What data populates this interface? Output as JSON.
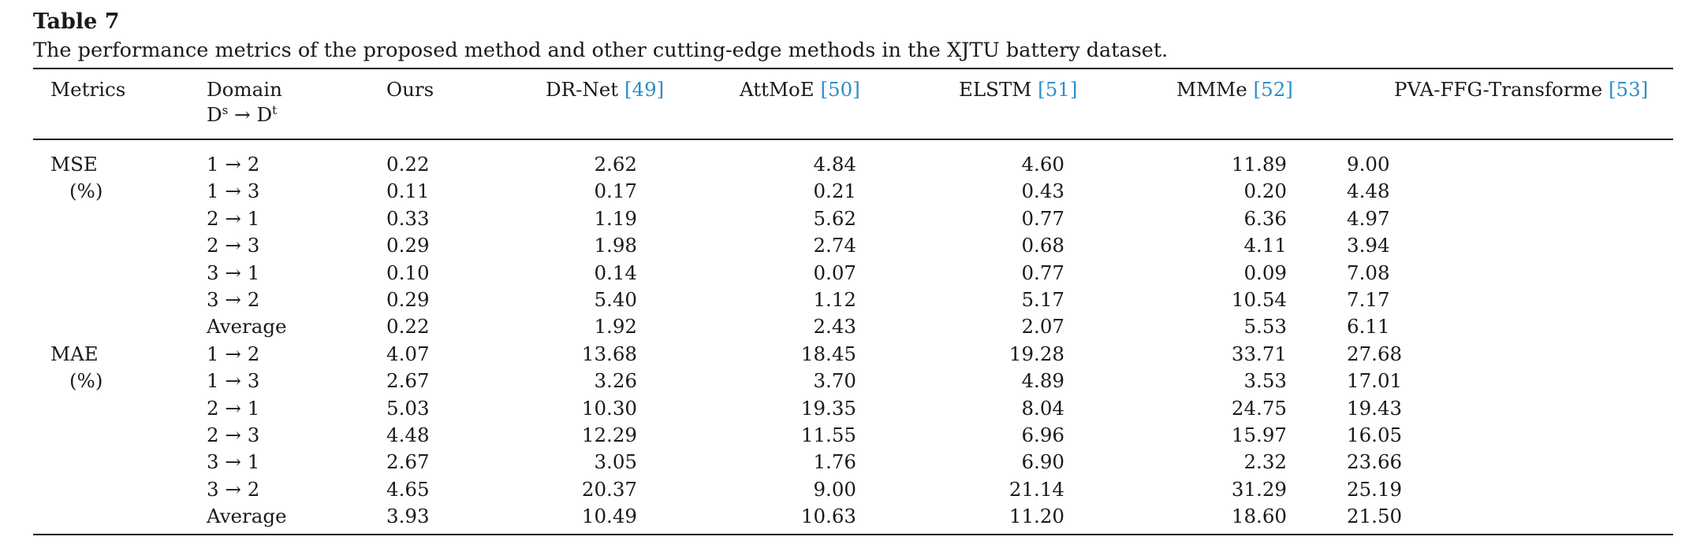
{
  "table": {
    "label": "Table 7",
    "caption": "The performance metrics of the proposed method and other cutting-edge methods in the XJTU battery dataset.",
    "headers": {
      "metrics": "Metrics",
      "domain": "Domain",
      "domain_sub_prefix": "D",
      "domain_sub_s": "s",
      "domain_sub_arrow": " → D",
      "domain_sub_t": "t",
      "ours": "Ours",
      "drnet": "DR-Net ",
      "drnet_ref": "[49]",
      "attmoe": "AttMoE ",
      "attmoe_ref": "[50]",
      "elstm": "ELSTM ",
      "elstm_ref": "[51]",
      "mmme": "MMMe ",
      "mmme_ref": "[52]",
      "pva": "PVA-FFG-Transforme ",
      "pva_ref": "[53]"
    },
    "groups": [
      {
        "metric": "MSE",
        "unit": "(%)",
        "rows": [
          {
            "domain": "1 → 2",
            "ours": "0.22",
            "drnet": "2.62",
            "attmoe": "4.84",
            "elstm": "4.60",
            "mmme": "11.89",
            "pva": "9.00"
          },
          {
            "domain": "1 → 3",
            "ours": "0.11",
            "drnet": "0.17",
            "attmoe": "0.21",
            "elstm": "0.43",
            "mmme": "0.20",
            "pva": "4.48"
          },
          {
            "domain": "2 → 1",
            "ours": "0.33",
            "drnet": "1.19",
            "attmoe": "5.62",
            "elstm": "0.77",
            "mmme": "6.36",
            "pva": "4.97"
          },
          {
            "domain": "2 → 3",
            "ours": "0.29",
            "drnet": "1.98",
            "attmoe": "2.74",
            "elstm": "0.68",
            "mmme": "4.11",
            "pva": "3.94"
          },
          {
            "domain": "3 → 1",
            "ours": "0.10",
            "drnet": "0.14",
            "attmoe": "0.07",
            "elstm": "0.77",
            "mmme": "0.09",
            "pva": "7.08"
          },
          {
            "domain": "3 → 2",
            "ours": "0.29",
            "drnet": "5.40",
            "attmoe": "1.12",
            "elstm": "5.17",
            "mmme": "10.54",
            "pva": "7.17"
          },
          {
            "domain": "Average",
            "ours": "0.22",
            "drnet": "1.92",
            "attmoe": "2.43",
            "elstm": "2.07",
            "mmme": "5.53",
            "pva": "6.11"
          }
        ]
      },
      {
        "metric": "MAE",
        "unit": "(%)",
        "rows": [
          {
            "domain": "1 → 2",
            "ours": "4.07",
            "drnet": "13.68",
            "attmoe": "18.45",
            "elstm": "19.28",
            "mmme": "33.71",
            "pva": "27.68"
          },
          {
            "domain": "1 → 3",
            "ours": "2.67",
            "drnet": "3.26",
            "attmoe": "3.70",
            "elstm": "4.89",
            "mmme": "3.53",
            "pva": "17.01"
          },
          {
            "domain": "2 → 1",
            "ours": "5.03",
            "drnet": "10.30",
            "attmoe": "19.35",
            "elstm": "8.04",
            "mmme": "24.75",
            "pva": "19.43"
          },
          {
            "domain": "2 → 3",
            "ours": "4.48",
            "drnet": "12.29",
            "attmoe": "11.55",
            "elstm": "6.96",
            "mmme": "15.97",
            "pva": "16.05"
          },
          {
            "domain": "3 → 1",
            "ours": "2.67",
            "drnet": "3.05",
            "attmoe": "1.76",
            "elstm": "6.90",
            "mmme": "2.32",
            "pva": "23.66"
          },
          {
            "domain": "3 → 2",
            "ours": "4.65",
            "drnet": "20.37",
            "attmoe": "9.00",
            "elstm": "21.14",
            "mmme": "31.29",
            "pva": "25.19"
          },
          {
            "domain": "Average",
            "ours": "3.93",
            "drnet": "10.49",
            "attmoe": "10.63",
            "elstm": "11.20",
            "mmme": "18.60",
            "pva": "21.50"
          }
        ]
      }
    ],
    "colors": {
      "text": "#1a1a1a",
      "reference_link": "#2a8fc8",
      "rule": "#1a1a1a"
    }
  }
}
